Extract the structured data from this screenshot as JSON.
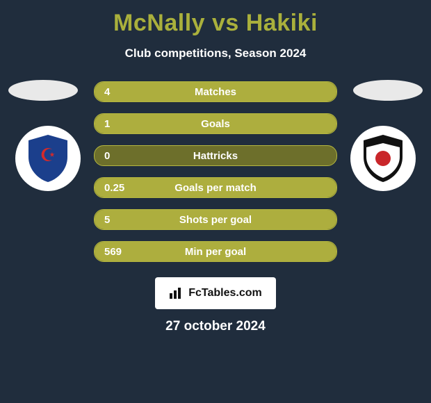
{
  "background_color": "#202d3d",
  "title": {
    "text": "McNally vs Hakiki",
    "color": "#aab03c",
    "fontsize": 34,
    "fontweight": 700
  },
  "subtitle": {
    "text": "Club competitions, Season 2024",
    "color": "#ffffff",
    "fontsize": 17
  },
  "bar_style": {
    "track_color": "#6d6f2b",
    "track_border": "#b5b73f",
    "fill_color": "#adae3e",
    "height": 30,
    "radius": 14,
    "fontsize": 15,
    "value_color": "#ffffff",
    "label_color": "#ffffff"
  },
  "stats": [
    {
      "label": "Matches",
      "value": "4",
      "left_pct": 100,
      "right_pct": 0
    },
    {
      "label": "Goals",
      "value": "1",
      "left_pct": 100,
      "right_pct": 0
    },
    {
      "label": "Hattricks",
      "value": "0",
      "left_pct": 0,
      "right_pct": 0
    },
    {
      "label": "Goals per match",
      "value": "0.25",
      "left_pct": 100,
      "right_pct": 0
    },
    {
      "label": "Shots per goal",
      "value": "5",
      "left_pct": 100,
      "right_pct": 0
    },
    {
      "label": "Min per goal",
      "value": "569",
      "left_pct": 100,
      "right_pct": 0
    }
  ],
  "left_player": {
    "photo_bg": "#e9e9e9",
    "crest_bg": "#ffffff",
    "crest_primary": "#1b3f8c",
    "crest_accent": "#d42a2a"
  },
  "right_player": {
    "photo_bg": "#e9e9e9",
    "crest_bg": "#ffffff",
    "crest_primary": "#111111",
    "crest_accent": "#c9262a"
  },
  "logo": {
    "text": "FcTables.com",
    "bg": "#ffffff",
    "color": "#111111"
  },
  "date": {
    "text": "27 october 2024",
    "color": "#ffffff",
    "fontsize": 19
  }
}
